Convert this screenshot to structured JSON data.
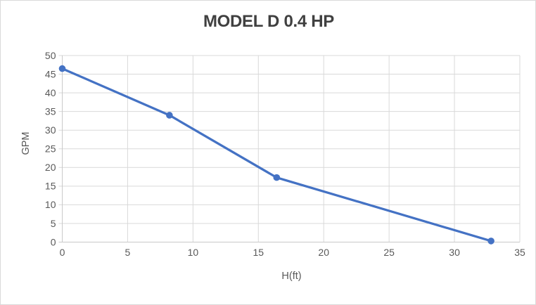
{
  "window": {
    "background": "#FFFFFF",
    "frame_border_color": "#D9D9D9"
  },
  "chart_data": {
    "type": "line",
    "title": "MODEL D 0.4 HP",
    "xlabel": "H(ft)",
    "ylabel": "GPM",
    "xlim": [
      0,
      35
    ],
    "ylim": [
      0,
      50
    ],
    "x_ticks": [
      0,
      5,
      10,
      15,
      20,
      25,
      30,
      35
    ],
    "y_ticks": [
      0,
      5,
      10,
      15,
      20,
      25,
      30,
      35,
      40,
      45,
      50
    ],
    "grid": true,
    "legend_position": "none",
    "series": [
      {
        "name": "MODEL D 0.4 HP",
        "x": [
          0,
          8.2,
          16.4,
          32.8
        ],
        "y": [
          46.5,
          34,
          17.3,
          0.3
        ]
      }
    ],
    "marker": "circle",
    "colors": {
      "line": "#4472C4",
      "marker": "#4472C4",
      "grid": "#D9D9D9",
      "axis": "#C9C9C9",
      "tick_label": "#595959",
      "axis_title": "#595959",
      "title": "#404040"
    }
  }
}
